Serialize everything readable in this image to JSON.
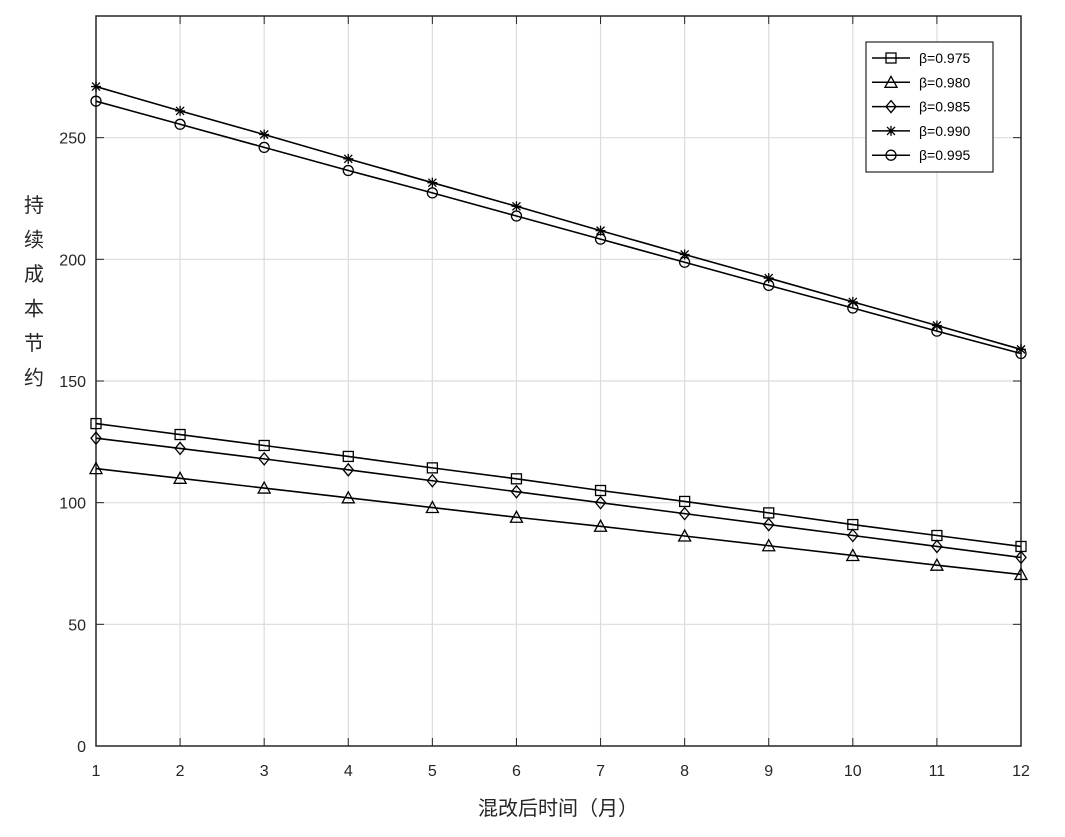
{
  "chart_data": {
    "type": "line",
    "xlabel": "混改后时间（月）",
    "ylabel": "持续成本节约",
    "xlim": [
      1,
      12
    ],
    "ylim": [
      0,
      300
    ],
    "xticks": [
      1,
      2,
      3,
      4,
      5,
      6,
      7,
      8,
      9,
      10,
      11,
      12
    ],
    "yticks": [
      0,
      50,
      100,
      150,
      200,
      250
    ],
    "grid": true,
    "legend_position": "top-right",
    "x": [
      1,
      2,
      3,
      4,
      5,
      6,
      7,
      8,
      9,
      10,
      11,
      12
    ],
    "series": [
      {
        "name": "β=0.975",
        "marker": "square",
        "values": [
          132.5,
          128.0,
          123.5,
          119.0,
          114.3,
          109.8,
          105.0,
          100.5,
          95.8,
          91.0,
          86.5,
          82.0
        ]
      },
      {
        "name": "β=0.980",
        "marker": "triangle",
        "values": [
          114.0,
          110.0,
          106.0,
          102.0,
          98.0,
          94.0,
          90.3,
          86.3,
          82.3,
          78.3,
          74.3,
          70.5
        ]
      },
      {
        "name": "β=0.985",
        "marker": "diamond",
        "values": [
          126.5,
          122.3,
          118.0,
          113.5,
          109.0,
          104.5,
          100.0,
          95.5,
          91.0,
          86.5,
          82.0,
          77.5
        ]
      },
      {
        "name": "β=0.990",
        "marker": "asterisk",
        "values": [
          271.0,
          261.0,
          251.3,
          241.3,
          231.5,
          221.8,
          211.8,
          202.0,
          192.3,
          182.5,
          172.8,
          163.0
        ]
      },
      {
        "name": "β=0.995",
        "marker": "circle",
        "values": [
          265.0,
          255.5,
          246.0,
          236.5,
          227.3,
          217.8,
          208.3,
          198.8,
          189.3,
          180.0,
          170.5,
          161.3
        ]
      }
    ]
  }
}
